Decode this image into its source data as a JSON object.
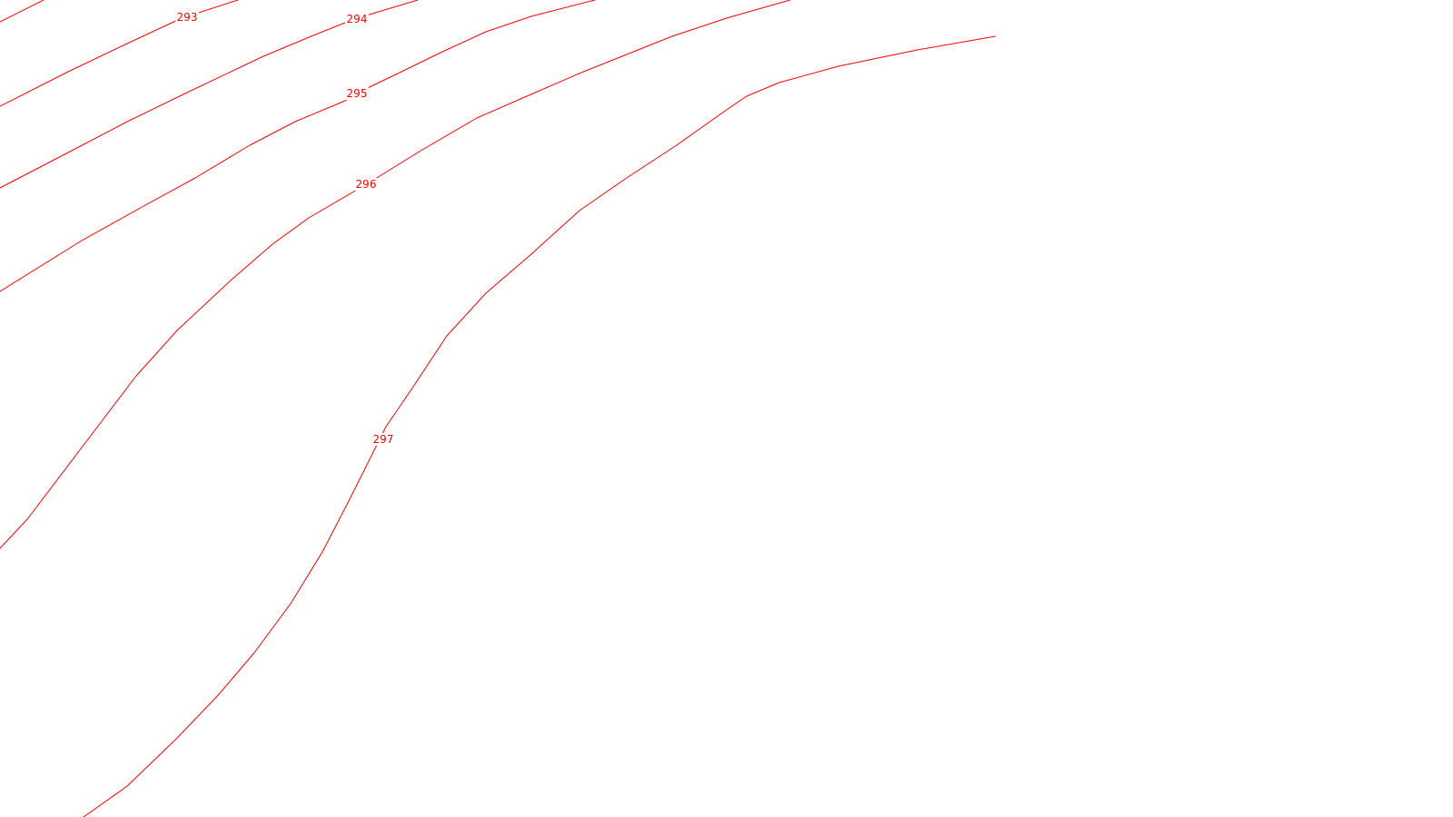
{
  "map": {
    "line_color": "#ff0000",
    "background_color": "#ffffff",
    "contours": [
      {
        "id": "contour-293",
        "elevation_label": "293"
      },
      {
        "id": "contour-294",
        "elevation_label": "294"
      },
      {
        "id": "contour-295",
        "elevation_label": "295"
      },
      {
        "id": "contour-296",
        "elevation_label": "296"
      },
      {
        "id": "contour-297",
        "elevation_label": "297"
      }
    ]
  }
}
